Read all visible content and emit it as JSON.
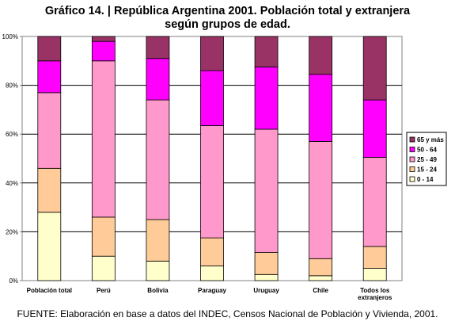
{
  "chart_data": {
    "type": "bar",
    "stacked": true,
    "normalized": true,
    "title": "Gráfico 14. | República Argentina 2001. Población total y extranjera",
    "subtitle": "según grupos de edad.",
    "categories": [
      "Población total",
      "Perú",
      "Bolivia",
      "Paraguay",
      "Uruguay",
      "Chile",
      "Todos los extranjeros"
    ],
    "category_label_lines": [
      [
        "Población total"
      ],
      [
        "Perú"
      ],
      [
        "Bolivia"
      ],
      [
        "Paraguay"
      ],
      [
        "Uruguay"
      ],
      [
        "Chile"
      ],
      [
        "Todos los",
        "extranjeros"
      ]
    ],
    "series": [
      {
        "name": "0 - 14",
        "color": "#FFFFCC",
        "values": [
          28,
          10,
          8,
          6,
          2.5,
          2,
          5
        ]
      },
      {
        "name": "15 - 24",
        "color": "#FFCC99",
        "values": [
          18,
          16,
          17,
          11.5,
          9,
          7,
          9
        ]
      },
      {
        "name": "25 - 49",
        "color": "#FF99CC",
        "values": [
          31,
          64,
          49,
          46,
          50.5,
          48,
          36.5
        ]
      },
      {
        "name": "50 - 64",
        "color": "#FF00FF",
        "values": [
          13,
          8,
          17,
          22.5,
          25.5,
          27.5,
          23.5
        ]
      },
      {
        "name": "65 y más",
        "color": "#993366",
        "values": [
          10,
          2,
          9,
          14,
          12.5,
          15.5,
          26
        ]
      }
    ],
    "y_ticks": [
      "0%",
      "20%",
      "40%",
      "60%",
      "80%",
      "100%"
    ],
    "ylim": [
      0,
      100
    ],
    "grid": true,
    "legend_position": "right"
  },
  "source": "FUENTE: Elaboración en base a datos del INDEC, Censos Nacional de Población y Vivienda, 2001."
}
